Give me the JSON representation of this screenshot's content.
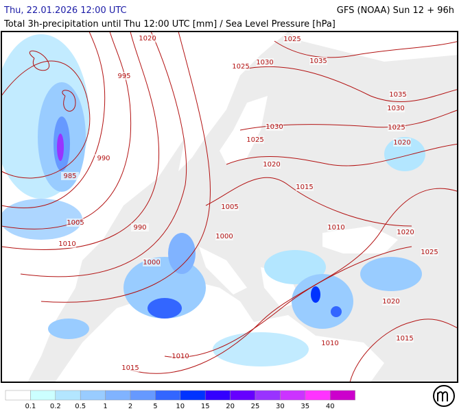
{
  "header": {
    "datetime": "Thu, 22.01.2026 12:00 UTC",
    "model": "GFS (NOAA) Sun 12 + 96h",
    "title": "Total 3h-precipitation until Thu 12:00 UTC [mm] / Sea Level Pressure [hPa]"
  },
  "isobar_labels": [
    "1020",
    "1025",
    "1035",
    "1030",
    "1025",
    "995",
    "1035",
    "1030",
    "1030",
    "1025",
    "1025",
    "1020",
    "990",
    "1020",
    "985",
    "1015",
    "1005",
    "1005",
    "990",
    "1010",
    "1000",
    "1020",
    "1010",
    "1025",
    "1000",
    "1020",
    "1015",
    "1010",
    "1010",
    "1015"
  ],
  "legend": {
    "labels": [
      "0.1",
      "0.2",
      "0.5",
      "1",
      "2",
      "5",
      "10",
      "15",
      "20",
      "25",
      "30",
      "35",
      "40"
    ]
  }
}
